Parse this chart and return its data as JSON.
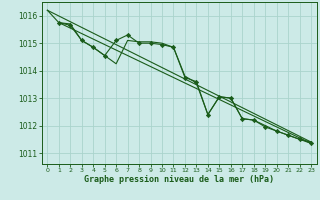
{
  "background_color": "#cceae7",
  "grid_color": "#aad4cc",
  "line_color": "#1a5c1a",
  "marker_color": "#1a5c1a",
  "xlabel": "Graphe pression niveau de la mer (hPa)",
  "xlim": [
    -0.5,
    23.5
  ],
  "ylim": [
    1010.6,
    1016.5
  ],
  "yticks": [
    1011,
    1012,
    1013,
    1014,
    1015,
    1016
  ],
  "xticks": [
    0,
    1,
    2,
    3,
    4,
    5,
    6,
    7,
    8,
    9,
    10,
    11,
    12,
    13,
    14,
    15,
    16,
    17,
    18,
    19,
    20,
    21,
    22,
    23
  ],
  "series": [
    {
      "x": [
        0,
        1,
        2,
        3,
        4,
        5,
        6,
        7,
        8,
        9,
        10,
        11,
        12,
        13,
        14,
        15,
        16,
        17,
        18,
        19,
        20,
        21,
        22,
        23
      ],
      "y": [
        1016.2,
        1015.75,
        1015.7,
        1015.1,
        1014.85,
        1014.55,
        1014.25,
        1015.1,
        1015.05,
        1015.05,
        1015.0,
        1014.85,
        1013.8,
        1013.55,
        1012.4,
        1013.05,
        1013.0,
        1012.25,
        1012.2,
        1012.0,
        1011.8,
        1011.65,
        1011.5,
        1011.4
      ],
      "marker": false
    },
    {
      "x": [
        1,
        2,
        3,
        4,
        5,
        6,
        7,
        8,
        9,
        10,
        11,
        12,
        13,
        14,
        15,
        16,
        17,
        18,
        19,
        20,
        21,
        22,
        23
      ],
      "y": [
        1015.75,
        1015.65,
        1015.1,
        1014.85,
        1014.55,
        1015.1,
        1015.3,
        1015.0,
        1015.0,
        1014.95,
        1014.85,
        1013.75,
        1013.6,
        1012.4,
        1013.05,
        1013.0,
        1012.25,
        1012.2,
        1011.95,
        1011.8,
        1011.65,
        1011.5,
        1011.35
      ],
      "marker": true
    },
    {
      "x": [
        0,
        23
      ],
      "y": [
        1016.2,
        1011.4
      ],
      "marker": false,
      "straight": true
    },
    {
      "x": [
        1,
        23
      ],
      "y": [
        1015.75,
        1011.35
      ],
      "marker": false,
      "straight": true
    }
  ]
}
